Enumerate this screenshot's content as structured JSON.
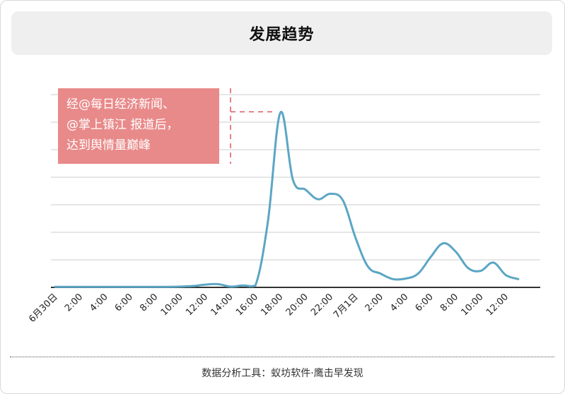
{
  "header": {
    "title": "发展趋势"
  },
  "footer": {
    "text": "数据分析工具：蚁坊软件·鹰击早发现"
  },
  "colors": {
    "line": "#5ba6c4",
    "annotation_bg": "#e98a8a",
    "annotation_leader": "#e0555f",
    "grid": "#cccccc",
    "axis": "#333333"
  },
  "chart_data": {
    "type": "line",
    "title": "",
    "xlabel": "",
    "ylabel": "",
    "grid": true,
    "x_tick_labels": [
      "6月30日",
      "2:00",
      "4:00",
      "6:00",
      "8:00",
      "10:00",
      "12:00",
      "14:00",
      "16:00",
      "18:00",
      "20:00",
      "22:00",
      "7月1日",
      "2:00",
      "4:00",
      "6:00",
      "8:00",
      "10:00",
      "12:00"
    ],
    "x": [
      "6月30日 0:00",
      "6月30日 1:00",
      "6月30日 2:00",
      "6月30日 3:00",
      "6月30日 4:00",
      "6月30日 5:00",
      "6月30日 6:00",
      "6月30日 7:00",
      "6月30日 8:00",
      "6月30日 9:00",
      "6月30日 10:00",
      "6月30日 11:00",
      "6月30日 12:00",
      "6月30日 13:00",
      "6月30日 14:00",
      "6月30日 15:00",
      "6月30日 16:00",
      "6月30日 17:00",
      "6月30日 18:00",
      "6月30日 19:00",
      "6月30日 20:00",
      "6月30日 21:00",
      "6月30日 22:00",
      "6月30日 23:00",
      "7月1日 0:00",
      "7月1日 1:00",
      "7月1日 2:00",
      "7月1日 3:00",
      "7月1日 4:00",
      "7月1日 5:00",
      "7月1日 6:00",
      "7月1日 7:00",
      "7月1日 8:00",
      "7月1日 9:00",
      "7月1日 10:00",
      "7月1日 11:00",
      "7月1日 12:00",
      "7月1日 13:00"
    ],
    "series": [
      {
        "values": [
          0.2,
          0.2,
          0.2,
          0.2,
          0.2,
          0.2,
          0.2,
          0.2,
          0.2,
          0.2,
          0.3,
          0.5,
          1.0,
          1.2,
          0.3,
          0.7,
          0.7,
          24.0,
          63.5,
          39.0,
          35.5,
          32.0,
          34.0,
          31.5,
          18.0,
          7.5,
          5.0,
          3.0,
          3.2,
          5.0,
          11.0,
          16.0,
          13.0,
          7.0,
          6.0,
          9.0,
          4.5,
          3.0
        ]
      }
    ],
    "ylim": [
      0,
      70
    ],
    "y_gridlines": [
      10,
      20,
      30,
      40,
      50,
      60,
      70
    ],
    "annotations": [
      {
        "text_lines": [
          "经@每日经济新闻、",
          "@掌上镇江 报道后，",
          "达到舆情量巅峰"
        ],
        "x_index": 18,
        "y": 63.5
      }
    ]
  }
}
